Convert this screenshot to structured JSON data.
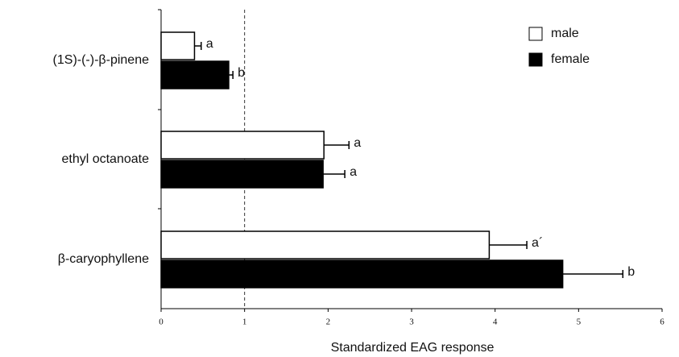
{
  "chart_data": {
    "type": "barh",
    "categories": [
      "(1S)-(-)-β-pinene",
      "ethyl octanoate",
      "β-caryophyllene"
    ],
    "series": [
      {
        "name": "male",
        "color": "#ffffff",
        "values": [
          0.4,
          1.95,
          3.93
        ],
        "errors": [
          0.08,
          0.3,
          0.45
        ],
        "annotations": [
          "a",
          "a",
          "a´"
        ]
      },
      {
        "name": "female",
        "color": "#000000",
        "values": [
          0.81,
          1.94,
          4.81
        ],
        "errors": [
          0.05,
          0.26,
          0.72
        ],
        "annotations": [
          "b",
          "a",
          "b"
        ]
      }
    ],
    "xlabel": "Standardized EAG response",
    "xlim": [
      0,
      6
    ],
    "xticks": [
      0,
      1,
      2,
      3,
      4,
      5,
      6
    ],
    "reference_line": 1,
    "legend": "upper right"
  }
}
